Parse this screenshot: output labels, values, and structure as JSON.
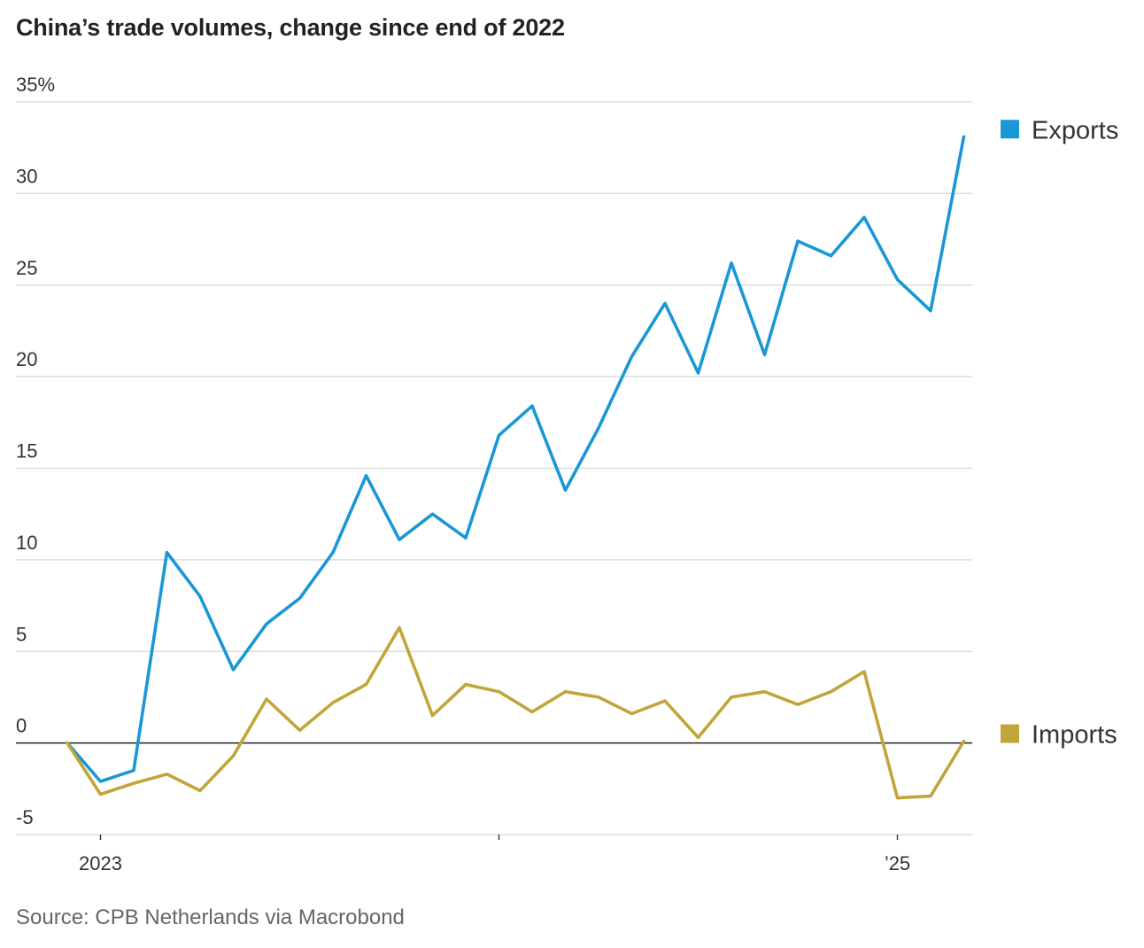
{
  "title": "China’s trade volumes, change since end of 2022",
  "source": "Source: CPB Netherlands via Macrobond",
  "chart_data": {
    "type": "line",
    "title": "China’s trade volumes, change since end of 2022",
    "xlabel": "",
    "ylabel": "",
    "ylim": [
      -5,
      35
    ],
    "yticks": [
      {
        "value": 35,
        "label": "35%"
      },
      {
        "value": 30,
        "label": "30"
      },
      {
        "value": 25,
        "label": "25"
      },
      {
        "value": 20,
        "label": "20"
      },
      {
        "value": 15,
        "label": "15"
      },
      {
        "value": 10,
        "label": "10"
      },
      {
        "value": 5,
        "label": "5"
      },
      {
        "value": 0,
        "label": "0"
      },
      {
        "value": -5,
        "label": "-5"
      }
    ],
    "x": [
      "2022-12",
      "2023-01",
      "2023-02",
      "2023-03",
      "2023-04",
      "2023-05",
      "2023-06",
      "2023-07",
      "2023-08",
      "2023-09",
      "2023-10",
      "2023-11",
      "2023-12",
      "2024-01",
      "2024-02",
      "2024-03",
      "2024-04",
      "2024-05",
      "2024-06",
      "2024-07",
      "2024-08",
      "2024-09",
      "2024-10",
      "2024-11",
      "2024-12",
      "2025-01",
      "2025-02",
      "2025-03"
    ],
    "xticks": [
      {
        "value": "2023-01",
        "label": "2023"
      },
      {
        "value": "2024-01",
        "label": ""
      },
      {
        "value": "2025-01",
        "label": "’25"
      }
    ],
    "grid": true,
    "legend": "right, at line ends",
    "series": [
      {
        "name": "Exports",
        "color": "#1a97d6",
        "values": [
          0,
          -2.1,
          -1.5,
          10.4,
          8.0,
          4.0,
          6.5,
          7.9,
          10.4,
          14.6,
          11.1,
          12.5,
          11.2,
          16.8,
          18.4,
          13.8,
          17.2,
          21.1,
          24.0,
          20.2,
          26.2,
          21.2,
          27.4,
          26.6,
          28.7,
          25.3,
          23.6,
          33.1
        ]
      },
      {
        "name": "Imports",
        "color": "#c2a53a",
        "values": [
          0,
          -2.8,
          -2.2,
          -1.7,
          -2.6,
          -0.7,
          2.4,
          0.7,
          2.2,
          3.2,
          6.3,
          1.5,
          3.2,
          2.8,
          1.7,
          2.8,
          2.5,
          1.6,
          2.3,
          0.3,
          2.5,
          2.8,
          2.1,
          2.8,
          3.9,
          -3.0,
          -2.9,
          0.1
        ]
      }
    ]
  }
}
